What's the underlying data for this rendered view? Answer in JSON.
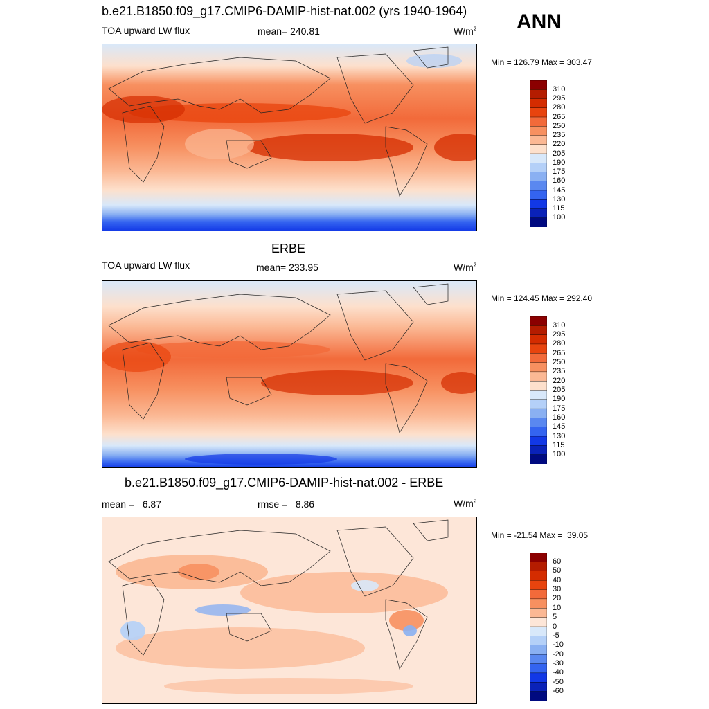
{
  "season": "ANN",
  "units_base": "W/m",
  "units_exp": "2",
  "panels": [
    {
      "title": "b.e21.B1850.f09_g17.CMIP6-DAMIP-hist-nat.002 (yrs 1940-1964)",
      "left_label": "TOA upward LW flux",
      "mid_label": "mean= 240.81",
      "minmax": "Min = 126.79 Max = 303.47"
    },
    {
      "title": "ERBE",
      "left_label": "TOA upward LW flux",
      "mid_label": "mean= 233.95",
      "minmax": "Min = 124.45 Max = 292.40"
    },
    {
      "title": "b.e21.B1850.f09_g17.CMIP6-DAMIP-hist-nat.002 - ERBE",
      "left_label": "mean =   6.87",
      "mid_label": "rmse =   8.86",
      "minmax": "Min = -21.54 Max =  39.05"
    }
  ],
  "colorbars": {
    "field": {
      "labels": [
        "310",
        "295",
        "280",
        "265",
        "250",
        "235",
        "220",
        "205",
        "190",
        "175",
        "160",
        "145",
        "130",
        "115",
        "100"
      ],
      "colors": [
        "#8b0000",
        "#b41c00",
        "#d42c00",
        "#e8440e",
        "#f26a3a",
        "#f79060",
        "#fbb894",
        "#fde0cc",
        "#d8e8fa",
        "#b4d0f8",
        "#8ab0f2",
        "#5a88f0",
        "#3464f0",
        "#1238e6",
        "#0a22b8",
        "#000a80"
      ]
    },
    "diff": {
      "labels": [
        "60",
        "50",
        "40",
        "30",
        "20",
        "10",
        "5",
        "0",
        "-5",
        "-10",
        "-20",
        "-30",
        "-40",
        "-50",
        "-60"
      ],
      "colors": [
        "#8b0000",
        "#b41c00",
        "#d42c00",
        "#e8440e",
        "#f26a3a",
        "#f79060",
        "#fbb894",
        "#fde6d8",
        "#d8e8fa",
        "#b4d0f8",
        "#8ab0f2",
        "#5a88f0",
        "#3464f0",
        "#1238e6",
        "#0a22b8",
        "#000a80"
      ]
    }
  }
}
